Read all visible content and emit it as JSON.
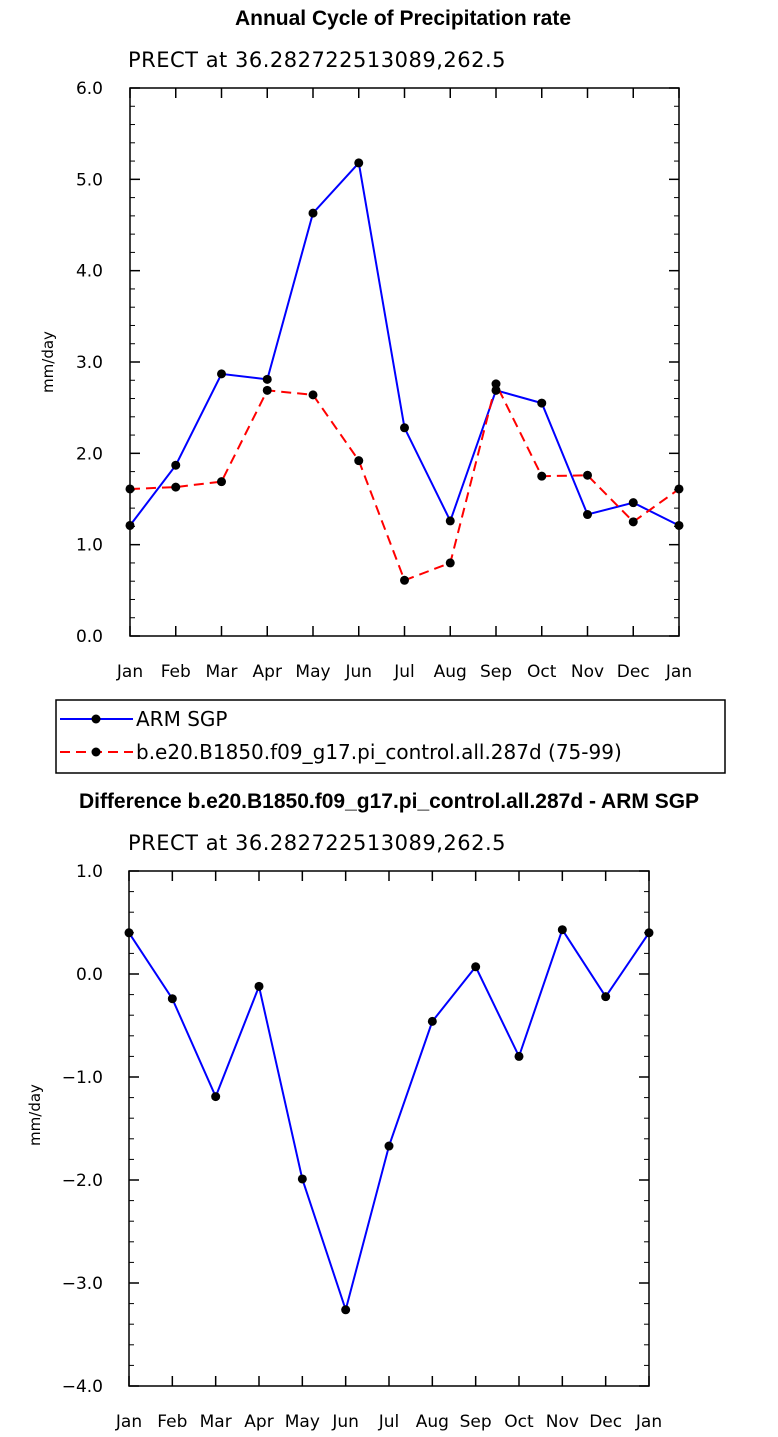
{
  "chart_data": [
    {
      "type": "line",
      "title": "Annual Cycle of Precipitation rate",
      "subtitle": "PRECT at 36.282722513089,262.5",
      "ylabel": "mm/day",
      "ylim": [
        0.0,
        6.0
      ],
      "yticks": [
        "0.0",
        "1.0",
        "2.0",
        "3.0",
        "4.0",
        "5.0",
        "6.0"
      ],
      "categories": [
        "Jan",
        "Feb",
        "Mar",
        "Apr",
        "May",
        "Jun",
        "Jul",
        "Aug",
        "Sep",
        "Oct",
        "Nov",
        "Dec",
        "Jan"
      ],
      "series": [
        {
          "name": "ARM SGP",
          "color": "#0000ff",
          "dash": "solid",
          "values": [
            1.21,
            1.87,
            2.87,
            2.81,
            4.63,
            5.18,
            2.28,
            1.26,
            2.69,
            2.55,
            1.33,
            1.46,
            1.21
          ]
        },
        {
          "name": "b.e20.B1850.f09_g17.pi_control.all.287d (75-99)",
          "color": "#ff0000",
          "dash": "dashed",
          "values": [
            1.61,
            1.63,
            1.69,
            2.69,
            2.64,
            1.92,
            0.61,
            0.8,
            2.76,
            1.75,
            1.76,
            1.25,
            1.61
          ]
        }
      ],
      "legend": "below"
    },
    {
      "type": "line",
      "title": "Difference b.e20.B1850.f09_g17.pi_control.all.287d - ARM SGP",
      "subtitle": "PRECT at 36.282722513089,262.5",
      "ylabel": "mm/day",
      "ylim": [
        -4.0,
        1.0
      ],
      "yticks": [
        "−4.0",
        "−3.0",
        "−2.0",
        "−1.0",
        "0.0",
        "1.0"
      ],
      "categories": [
        "Jan",
        "Feb",
        "Mar",
        "Apr",
        "May",
        "Jun",
        "Jul",
        "Aug",
        "Sep",
        "Oct",
        "Nov",
        "Dec",
        "Jan"
      ],
      "series": [
        {
          "color": "#0000ff",
          "dash": "solid",
          "values": [
            0.4,
            -0.24,
            -1.19,
            -0.12,
            -1.99,
            -3.26,
            -1.67,
            -0.46,
            0.07,
            -0.8,
            0.43,
            -0.22,
            0.4
          ]
        }
      ]
    }
  ]
}
